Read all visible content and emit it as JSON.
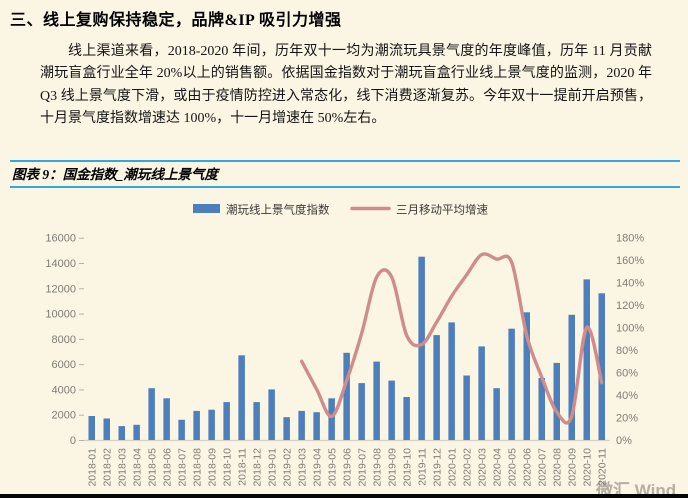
{
  "page": {
    "heading": "三、线上复购保持稳定，品牌&IP 吸引力增强",
    "paragraph": "线上渠道来看，2018-2020 年间，历年双十一均为潮流玩具景气度的年度峰值，历年 11 月贡献潮玩盲盒行业全年 20%以上的销售额。依据国金指数对于潮玩盲盒行业线上景气度的监测，2020 年 Q3 线上景气度下滑，或由于疫情防控进入常态化，线下消费逐渐复苏。今年双十一提前开启预售，十月景气度指数增速达 100%，十一月增速在 50%左右。",
    "figure_caption": "图表 9：国金指数_潮玩线上景气度",
    "watermark": "微汇 Wind"
  },
  "colors": {
    "background": "#FBF5E4",
    "bar": "#4E7FBD",
    "line": "#D08C8A",
    "rule_blue": "#33A7DF",
    "axis_text": "#7E7D75",
    "axis_line": "#D5D1C3",
    "legend_text": "#3A3A36"
  },
  "chart_data": {
    "type": "bar",
    "subtype": "combo-bar-line",
    "title": "国金指数_潮玩线上景气度",
    "legend_position": "top",
    "grid": false,
    "categories": [
      "2018-01",
      "2018-02",
      "2018-03",
      "2018-04",
      "2018-05",
      "2018-06",
      "2018-07",
      "2018-08",
      "2018-09",
      "2018-10",
      "2018-11",
      "2018-12",
      "2019-01",
      "2019-02",
      "2019-03",
      "2019-04",
      "2019-05",
      "2019-06",
      "2019-07",
      "2019-08",
      "2019-09",
      "2019-10",
      "2019-11",
      "2019-12",
      "2020-01",
      "2020-02",
      "2020-03",
      "2020-04",
      "2020-05",
      "2020-06",
      "2020-07",
      "2020-08",
      "2020-09",
      "2020-10",
      "2020-11"
    ],
    "series": [
      {
        "name": "潮玩线上景气度指数",
        "type": "bar",
        "axis": "left",
        "values": [
          1900,
          1700,
          1100,
          1200,
          4100,
          3300,
          1600,
          2300,
          2400,
          3000,
          6700,
          3000,
          4000,
          1800,
          2300,
          2200,
          3300,
          6900,
          4500,
          6200,
          4700,
          3400,
          14500,
          8300,
          9300,
          5100,
          7400,
          4100,
          8800,
          10100,
          4900,
          6100,
          9900,
          12700,
          11600
        ]
      },
      {
        "name": "三月移动平均增速",
        "type": "line",
        "axis": "right",
        "unit": "%",
        "values": [
          null,
          null,
          null,
          null,
          null,
          null,
          null,
          null,
          null,
          null,
          null,
          null,
          null,
          null,
          70,
          45,
          21,
          53,
          95,
          145,
          145,
          93,
          85,
          105,
          128,
          147,
          165,
          161,
          158,
          93,
          56,
          25,
          21,
          100,
          51
        ]
      }
    ],
    "left_axis": {
      "min": 0,
      "max": 16000,
      "step": 2000,
      "ticks": [
        "0",
        "2000",
        "4000",
        "6000",
        "8000",
        "10000",
        "12000",
        "14000",
        "16000"
      ]
    },
    "right_axis": {
      "min": 0,
      "max": 180,
      "step": 20,
      "format": "percent",
      "ticks": [
        "0%",
        "20%",
        "40%",
        "60%",
        "80%",
        "100%",
        "120%",
        "140%",
        "160%",
        "180%"
      ]
    }
  }
}
